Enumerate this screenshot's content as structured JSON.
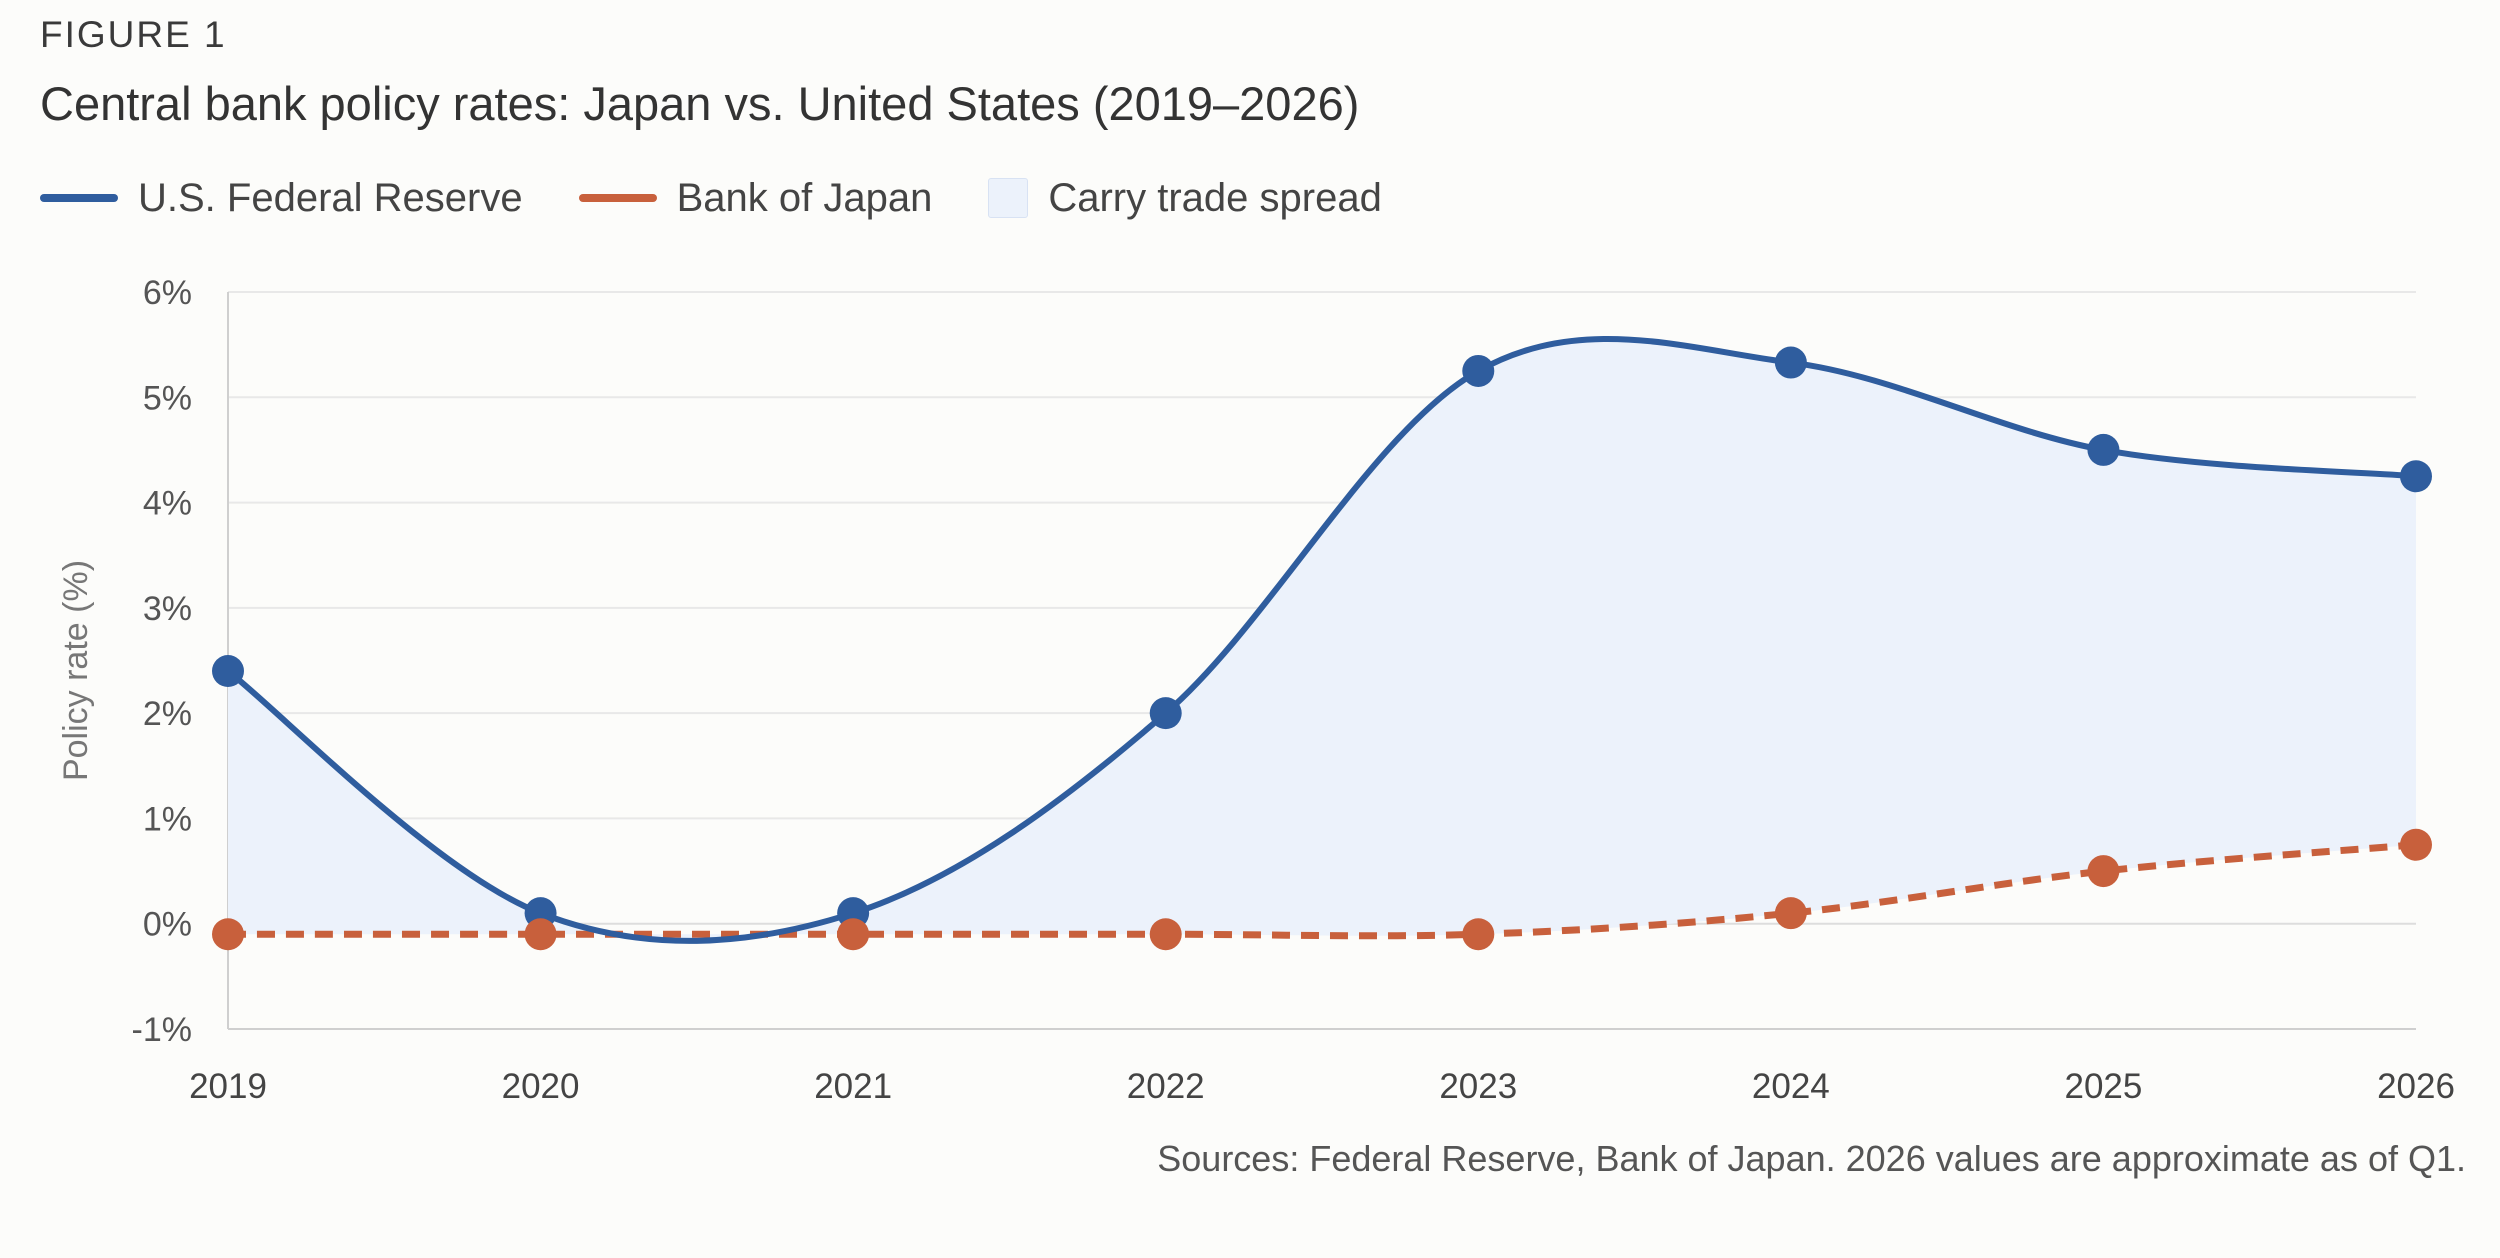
{
  "figure_label": "FIGURE 1",
  "chart_data": {
    "type": "line",
    "title": "Central bank policy rates: Japan vs. United States (2019–2026)",
    "xlabel": "",
    "ylabel": "Policy rate (%)",
    "x": [
      "2019",
      "2020",
      "2021",
      "2022",
      "2023",
      "2024",
      "2025",
      "2026"
    ],
    "ylim": [
      -1,
      6
    ],
    "yticks": [
      -1,
      0,
      1,
      2,
      3,
      4,
      5,
      6
    ],
    "ytick_labels": [
      "-1%",
      "0%",
      "1%",
      "2%",
      "3%",
      "4%",
      "5%",
      "6%"
    ],
    "series": [
      {
        "name": "U.S. Federal Reserve",
        "values": [
          2.4,
          0.1,
          0.1,
          2.0,
          5.25,
          5.33,
          4.5,
          4.25
        ],
        "color": "#2f5d9e",
        "style": "solid"
      },
      {
        "name": "Bank of Japan",
        "values": [
          -0.1,
          -0.1,
          -0.1,
          -0.1,
          -0.1,
          0.1,
          0.5,
          0.75
        ],
        "color": "#c8603c",
        "style": "dashed"
      }
    ],
    "area": {
      "name": "Carry trade spread",
      "color": "#ecf2fb"
    },
    "legend_position": "top-left"
  },
  "sources": "Sources: Federal Reserve, Bank of Japan. 2026 values are approximate as of Q1."
}
